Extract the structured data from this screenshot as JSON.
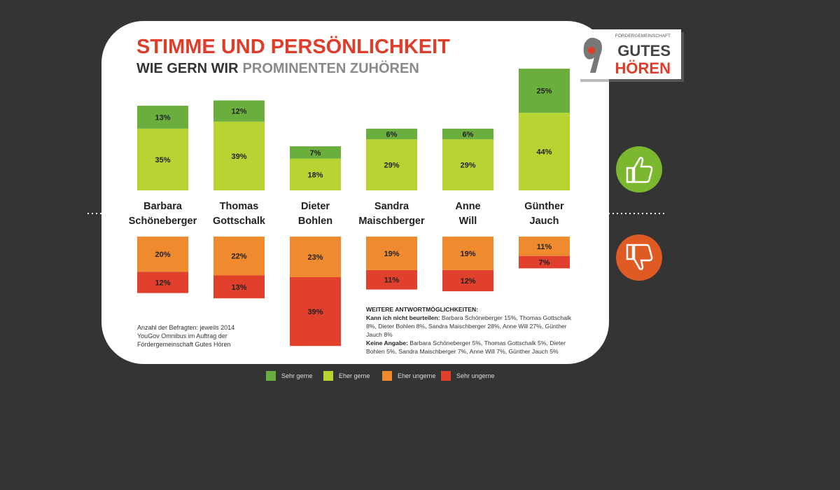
{
  "chart_data": {
    "type": "diverging-stacked-bar",
    "title": "STIMME UND PERSÖNLICHKEIT",
    "subtitle": "WIE GERN WIR",
    "subtitle_highlight": "PROMINENTEN ZUHÖREN",
    "categories": [
      "Barbara\nSchöneberger",
      "Thomas\nGottschalk",
      "Dieter\nBohlen",
      "Sandra\nMaischberger",
      "Anne\nWill",
      "Günther\nJauch"
    ],
    "series": [
      {
        "name": "Sehr gerne",
        "color": "#6aaf3d",
        "values": [
          13,
          12,
          7,
          6,
          6,
          25
        ],
        "value_labels": [
          "13%",
          "12%",
          "7%",
          "6%",
          "6%",
          "25%"
        ]
      },
      {
        "name": "Eher gerne",
        "color": "#b8d432",
        "values": [
          35,
          39,
          18,
          29,
          29,
          44
        ],
        "value_labels": [
          "35%",
          "39%",
          "18%",
          "29%",
          "29%",
          "44%"
        ]
      },
      {
        "name": "Eher ungerne",
        "color": "#ef8a2f",
        "values": [
          20,
          22,
          23,
          19,
          19,
          11
        ],
        "value_labels": [
          "20%",
          "22%",
          "23%",
          "19%",
          "19%",
          "11%"
        ]
      },
      {
        "name": "Sehr ungerne",
        "color": "#e0402c",
        "values": [
          12,
          13,
          39,
          11,
          12,
          7
        ],
        "value_labels": [
          "12%",
          "13%",
          "39%",
          "11%",
          "12%",
          "7%"
        ]
      }
    ],
    "source": "Anzahl der Befragten: jeweils 2014\nYouGov Omnibus im Auftrag der\nFördergemeinschaft Gutes Hören",
    "notes": {
      "heading": "WEITERE ANTWORTMÖGLICHKEITEN:",
      "items": [
        {
          "label": "Kann ich nicht beurteilen:",
          "text": "Barbara Schöneberger 15%, Thomas Gottschalk 8%, Dieter Bohlen 8%, Sandra Maischberger 28%, Anne Will 27%, Günther Jauch 8%"
        },
        {
          "label": "Keine Angabe:",
          "text": "Barbara Schöneberger 5%, Thomas Gottschalk 5%, Dieter Bohlen 5%, Sandra Maischberger 7%, Anne Will 7%, Günther Jauch 5%"
        }
      ]
    },
    "logo": {
      "top": "FÖRDERGEMEINSCHAFT",
      "line1": "GUTES",
      "line2": "HÖREN"
    }
  }
}
